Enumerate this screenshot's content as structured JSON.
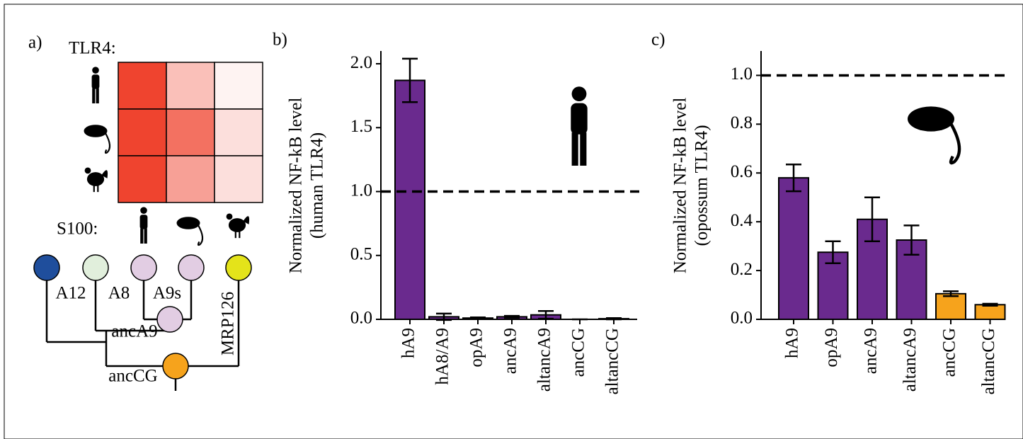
{
  "chart_data": [
    {
      "type": "heatmap",
      "panel": "a)",
      "title": "TLR4:",
      "xlabel": "S100:",
      "values": [
        [
          0.95,
          0.32,
          0.06
        ],
        [
          0.95,
          0.72,
          0.16
        ],
        [
          0.95,
          0.48,
          0.16
        ]
      ],
      "color": "#ee3a24",
      "clim": [
        0,
        1
      ]
    },
    {
      "type": "bar",
      "panel": "b)",
      "ylabel": [
        "Normalized NF-kB level",
        "(human TLR4)"
      ],
      "categories": [
        "hA9",
        "hA8/A9",
        "opA9",
        "ancA9",
        "altancA9",
        "ancCG",
        "altancCG"
      ],
      "values": [
        1.87,
        0.02,
        0.01,
        0.02,
        0.035,
        0.0,
        0.005
      ],
      "errors": [
        0.17,
        0.025,
        0.005,
        0.007,
        0.03,
        0.0,
        0.005
      ],
      "colors": [
        "#6a2a8e",
        "#6a2a8e",
        "#6a2a8e",
        "#6a2a8e",
        "#6a2a8e",
        "#6a2a8e",
        "#6a2a8e"
      ],
      "hline": 1.0,
      "ylim": [
        0,
        2.1
      ],
      "yticks": [
        {
          "value": 0,
          "label": "0.0"
        },
        0.5,
        {
          "value": 1,
          "label": "1.0"
        },
        1.5,
        {
          "value": 2,
          "label": "2.0"
        }
      ]
    },
    {
      "type": "bar",
      "panel": "c)",
      "ylabel": [
        "Normalized NF-kB level",
        "(opossum TLR4)"
      ],
      "categories": [
        "hA9",
        "opA9",
        "ancA9",
        "altancA9",
        "ancCG",
        "altancCG"
      ],
      "values": [
        0.58,
        0.275,
        0.41,
        0.325,
        0.105,
        0.06
      ],
      "errors": [
        0.055,
        0.045,
        0.09,
        0.06,
        0.01,
        0.004
      ],
      "colors": [
        "#6a2a8e",
        "#6a2a8e",
        "#6a2a8e",
        "#6a2a8e",
        "#f6a31c",
        "#f6a31c"
      ],
      "hline": 1.0,
      "ylim": [
        0,
        1.1
      ],
      "yticks": [
        {
          "value": 0,
          "label": "0.0"
        },
        0.2,
        0.4,
        0.6,
        0.8,
        {
          "value": 1,
          "label": "1.0"
        }
      ]
    }
  ],
  "tree": {
    "leaves": [
      "A12",
      "A8",
      "A9s",
      "MRP126"
    ],
    "ancestors": [
      "ancA9",
      "ancCG"
    ]
  }
}
